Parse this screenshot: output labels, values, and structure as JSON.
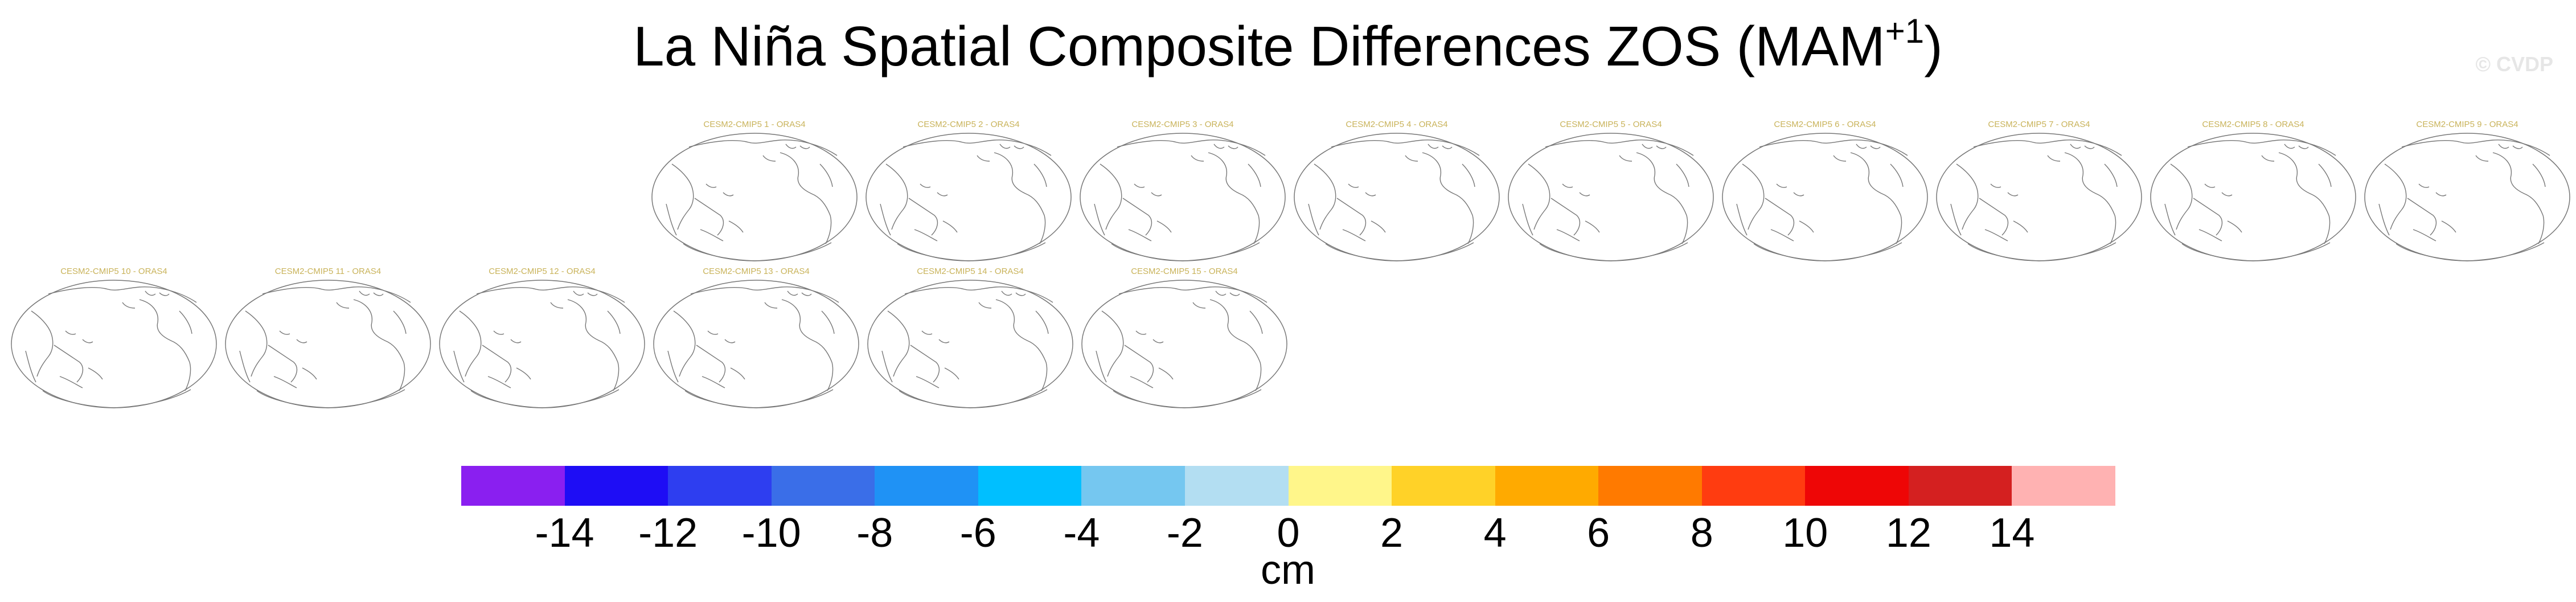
{
  "title": {
    "main": "La Niña Spatial Composite Differences ZOS (MAM",
    "sup": "+1",
    "close": ")"
  },
  "watermark": "© CVDP",
  "panels": [
    {
      "label": "CESM2-CMIP5 1 - ORAS4"
    },
    {
      "label": "CESM2-CMIP5 2 - ORAS4"
    },
    {
      "label": "CESM2-CMIP5 3 - ORAS4"
    },
    {
      "label": "CESM2-CMIP5 4 - ORAS4"
    },
    {
      "label": "CESM2-CMIP5 5 - ORAS4"
    },
    {
      "label": "CESM2-CMIP5 6 - ORAS4"
    },
    {
      "label": "CESM2-CMIP5 7 - ORAS4"
    },
    {
      "label": "CESM2-CMIP5 8 - ORAS4"
    },
    {
      "label": "CESM2-CMIP5 9 - ORAS4"
    },
    {
      "label": "CESM2-CMIP5 10 - ORAS4"
    },
    {
      "label": "CESM2-CMIP5 11 - ORAS4"
    },
    {
      "label": "CESM2-CMIP5 12 - ORAS4"
    },
    {
      "label": "CESM2-CMIP5 13 - ORAS4"
    },
    {
      "label": "CESM2-CMIP5 14 - ORAS4"
    },
    {
      "label": "CESM2-CMIP5 15 - ORAS4"
    }
  ],
  "colorbar": {
    "colors": [
      "#8a1ff0",
      "#1e0df5",
      "#2e3ef0",
      "#3a6ee8",
      "#1f92f5",
      "#00bfff",
      "#75c7f0",
      "#b3def2",
      "#fff68a",
      "#ffd228",
      "#ffaa00",
      "#ff7a00",
      "#ff3c10",
      "#ee0606",
      "#d42020",
      "#ffb2b2"
    ],
    "ticks": [
      "-14",
      "-12",
      "-10",
      "-8",
      "-6",
      "-4",
      "-2",
      "0",
      "2",
      "4",
      "6",
      "8",
      "10",
      "12",
      "14"
    ],
    "units": "cm"
  }
}
